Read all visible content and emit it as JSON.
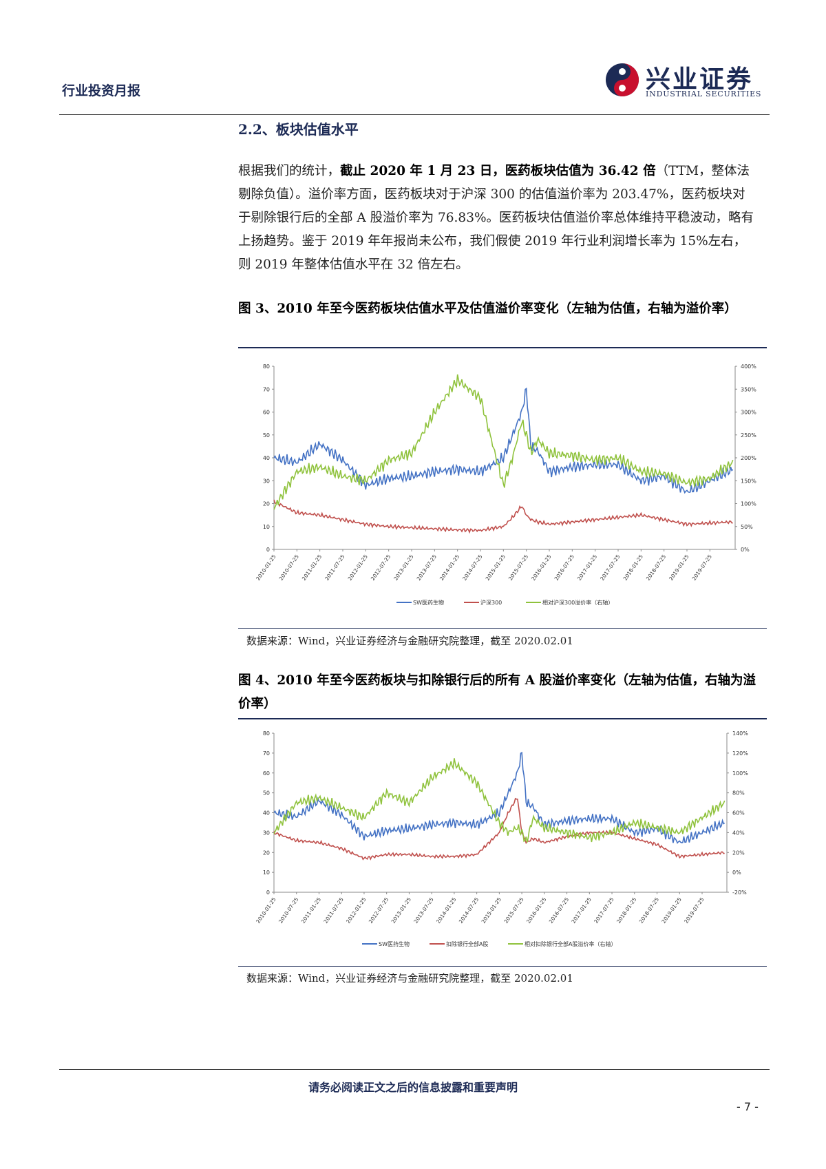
{
  "header": {
    "report_type": "行业投资月报",
    "logo_cn": "兴业证券",
    "logo_en": "INDUSTRIAL SECURITIES",
    "brand_blue": "#1c2a55",
    "brand_red": "#c8102e"
  },
  "section": {
    "title": "2.2、板块估值水平"
  },
  "paragraph": {
    "part1": "根据我们的统计，",
    "bold1": "截止 2020 年 1 月 23 日，医药板块估值为 36.42 倍",
    "part2": "（TTM，整体法剔除负值）。溢价率方面，医药板块对于沪深 300 的估值溢价率为 203.47%，医药板块对于剔除银行后的全部 A 股溢价率为 76.83%。医药板块估值溢价率总体维持平稳波动，略有上扬趋势。鉴于 2019 年年报尚未公布，我们假使 2019 年行业利润增长率为 15%左右，则 2019 年整体估值水平在 32 倍左右。"
  },
  "figure3": {
    "title": "图 3、2010 年至今医药板块估值水平及估值溢价率变化（左轴为估值，右轴为溢价率）",
    "source": "数据来源：Wind，兴业证券经济与金融研究院整理，截至 2020.02.01"
  },
  "figure4": {
    "title": "图 4、2010 年至今医药板块与扣除银行后的所有 A 股溢价率变化（左轴为估值，右轴为溢价率）",
    "source": "数据来源：Wind，兴业证券经济与金融研究院整理，截至 2020.02.01"
  },
  "footer": {
    "disclaimer": "请务必阅读正文之后的信息披露和重要声明",
    "page": "- 7 -"
  },
  "chart_data": [
    {
      "type": "line",
      "x_tick_labels": [
        "2010-01-25",
        "2010-07-25",
        "2011-01-25",
        "2011-07-25",
        "2012-01-25",
        "2012-07-25",
        "2013-01-25",
        "2013-07-25",
        "2014-01-25",
        "2014-07-25",
        "2015-01-25",
        "2015-07-25",
        "2016-01-25",
        "2016-07-25",
        "2017-01-25",
        "2017-07-25",
        "2018-01-25",
        "2018-07-25",
        "2019-01-25",
        "2019-07-25"
      ],
      "x": [
        2010.0,
        2010.5,
        2011.0,
        2011.5,
        2012.0,
        2012.5,
        2013.0,
        2013.5,
        2014.0,
        2014.5,
        2015.0,
        2015.2,
        2015.4,
        2015.5,
        2015.6,
        2015.75,
        2016.0,
        2016.5,
        2017.0,
        2017.5,
        2018.0,
        2018.5,
        2019.0,
        2019.5,
        2020.0
      ],
      "ylim_left": [
        0,
        80
      ],
      "yticks_left": [
        "0",
        "10",
        "20",
        "30",
        "40",
        "50",
        "60",
        "70",
        "80"
      ],
      "ylim_right": [
        0,
        400
      ],
      "yticks_right": [
        "0%",
        "50%",
        "100%",
        "150%",
        "200%",
        "250%",
        "300%",
        "350%",
        "400%"
      ],
      "series": [
        {
          "name": "SW医药生物",
          "axis": "left",
          "color": "#4472c4",
          "values": [
            40,
            38,
            46,
            39,
            28,
            31,
            32,
            34,
            35,
            34,
            40,
            50,
            60,
            70,
            45,
            43,
            34,
            36,
            37,
            37,
            30,
            32,
            25,
            30,
            35
          ]
        },
        {
          "name": "沪深300",
          "axis": "left",
          "color": "#c0504d",
          "values": [
            21,
            16,
            15,
            13,
            11,
            10,
            9.5,
            9,
            8.5,
            8.3,
            10,
            14,
            19,
            15,
            13,
            12,
            11,
            12,
            13,
            14,
            15,
            13,
            11,
            11.5,
            12
          ]
        },
        {
          "name": "相对沪深300溢价率（右轴）",
          "axis": "right",
          "color": "#8fc23c",
          "values": [
            90,
            170,
            180,
            160,
            150,
            195,
            210,
            300,
            370,
            330,
            140,
            200,
            280,
            250,
            210,
            240,
            210,
            205,
            195,
            200,
            170,
            165,
            145,
            155,
            190
          ]
        }
      ]
    },
    {
      "type": "line",
      "x_tick_labels": [
        "2010-01-25",
        "2010-07-25",
        "2011-01-25",
        "2011-07-25",
        "2012-01-25",
        "2012-07-25",
        "2013-01-25",
        "2013-07-25",
        "2014-01-25",
        "2014-07-25",
        "2015-01-25",
        "2015-07-25",
        "2016-01-25",
        "2016-07-25",
        "2017-01-25",
        "2017-07-25",
        "2018-01-25",
        "2018-07-25",
        "2019-01-25",
        "2019-07-25"
      ],
      "x": [
        2010.0,
        2010.5,
        2011.0,
        2011.5,
        2012.0,
        2012.5,
        2013.0,
        2013.5,
        2014.0,
        2014.5,
        2015.0,
        2015.2,
        2015.4,
        2015.5,
        2015.6,
        2015.75,
        2016.0,
        2016.5,
        2017.0,
        2017.5,
        2018.0,
        2018.5,
        2019.0,
        2019.5,
        2020.0
      ],
      "ylim_left": [
        0,
        80
      ],
      "yticks_left": [
        "0",
        "10",
        "20",
        "30",
        "40",
        "50",
        "60",
        "70",
        "80"
      ],
      "ylim_right": [
        -20,
        140
      ],
      "yticks_right": [
        "-20%",
        "0%",
        "20%",
        "40%",
        "60%",
        "80%",
        "100%",
        "120%",
        "140%"
      ],
      "series": [
        {
          "name": "SW医药生物",
          "axis": "left",
          "color": "#4472c4",
          "values": [
            40,
            38,
            46,
            39,
            28,
            31,
            32,
            34,
            35,
            34,
            40,
            50,
            60,
            70,
            45,
            43,
            34,
            36,
            37,
            37,
            30,
            32,
            25,
            30,
            35
          ]
        },
        {
          "name": "扣除银行全部A股",
          "axis": "left",
          "color": "#c0504d",
          "values": [
            30,
            26,
            25,
            22,
            17,
            19,
            19,
            18,
            18,
            19,
            30,
            40,
            48,
            30,
            25,
            27,
            25,
            28,
            30,
            30,
            27,
            24,
            18,
            19,
            20
          ]
        },
        {
          "name": "相对扣除银行全部A股溢价率（右轴）",
          "axis": "right",
          "color": "#8fc23c",
          "values": [
            40,
            70,
            75,
            65,
            55,
            80,
            70,
            95,
            110,
            90,
            50,
            40,
            45,
            40,
            30,
            55,
            45,
            40,
            35,
            40,
            50,
            45,
            40,
            55,
            70
          ]
        }
      ]
    }
  ]
}
